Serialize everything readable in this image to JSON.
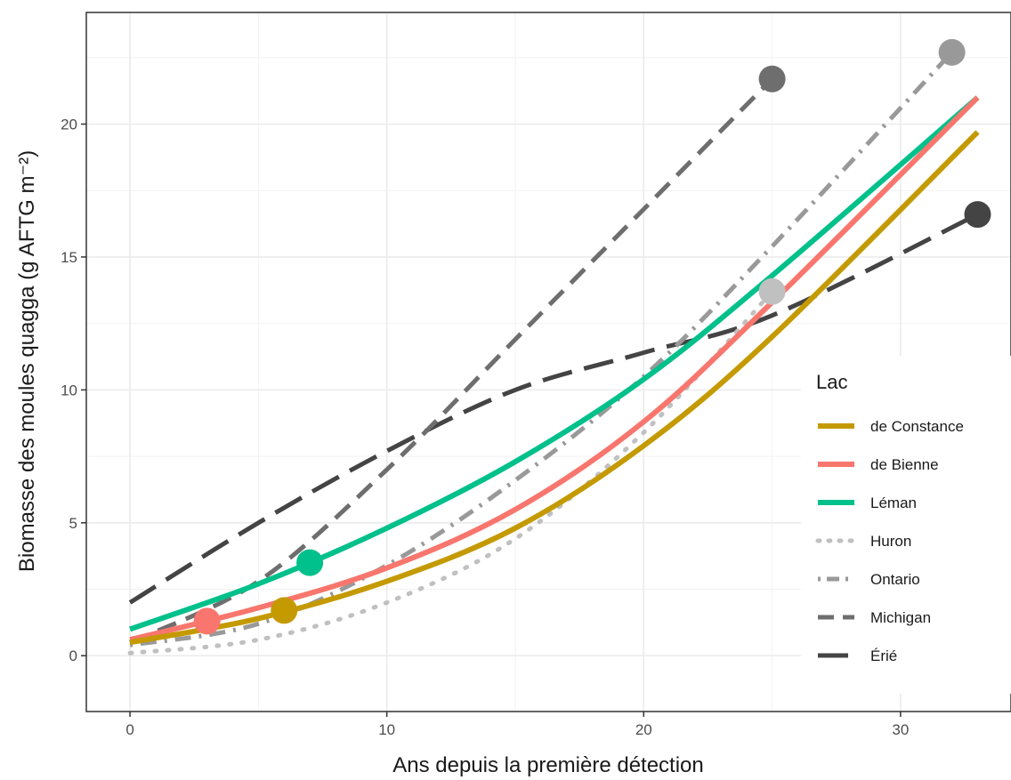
{
  "chart_data": {
    "type": "line",
    "xlabel": "Ans depuis la première détection",
    "ylabel": "Biomasse des moules quagga (g AFTG m⁻²)",
    "xlim": [
      -1.7,
      34.3
    ],
    "ylim": [
      -2.1,
      24.2
    ],
    "x_ticks": [
      0,
      10,
      20,
      30
    ],
    "y_ticks": [
      0,
      5,
      10,
      15,
      20
    ],
    "x_tick_labels": [
      "0",
      "10",
      "20",
      "30"
    ],
    "y_tick_labels": [
      "0",
      "5",
      "10",
      "15",
      "20"
    ],
    "grid": true,
    "legend": {
      "title": "Lac",
      "position": "right",
      "labels": [
        "de Constance",
        "de Bienne",
        "Léman",
        "Huron",
        "Ontario",
        "Michigan",
        "Érié"
      ]
    },
    "series": [
      {
        "name": "de Constance",
        "color": "#c49a00",
        "dash": "solid",
        "x": [
          0,
          5,
          10,
          15,
          20,
          25,
          33
        ],
        "y": [
          0.5,
          1.4,
          2.8,
          4.8,
          7.9,
          12.0,
          19.7
        ],
        "point": {
          "x": 6,
          "y": 1.7
        }
      },
      {
        "name": "de Bienne",
        "color": "#f8766d",
        "dash": "solid",
        "x": [
          0,
          5,
          10,
          15,
          20,
          25,
          33
        ],
        "y": [
          0.6,
          1.8,
          3.3,
          5.5,
          8.8,
          13.3,
          21.0
        ],
        "point": {
          "x": 3,
          "y": 1.3
        }
      },
      {
        "name": "Léman",
        "color": "#00c08b",
        "dash": "solid",
        "x": [
          0,
          5,
          10,
          15,
          20,
          25,
          33
        ],
        "y": [
          1.0,
          2.7,
          4.8,
          7.3,
          10.4,
          14.3,
          21.0
        ],
        "point": {
          "x": 7,
          "y": 3.5
        }
      },
      {
        "name": "Huron",
        "color": "#c0c0c0",
        "dash": "dot",
        "x": [
          0,
          5,
          10,
          15,
          20,
          25
        ],
        "y": [
          0.1,
          0.6,
          2.0,
          4.4,
          8.4,
          13.7
        ],
        "point": {
          "x": 25,
          "y": 13.7
        }
      },
      {
        "name": "Ontario",
        "color": "#999999",
        "dash": "dotdash",
        "x": [
          0,
          5,
          10,
          15,
          20,
          25,
          32
        ],
        "y": [
          0.4,
          1.2,
          3.4,
          6.6,
          10.5,
          15.4,
          22.7
        ],
        "point": {
          "x": 32,
          "y": 22.7
        }
      },
      {
        "name": "Michigan",
        "color": "#6e6e6e",
        "dash": "dash",
        "x": [
          0,
          5,
          10,
          15,
          20,
          25
        ],
        "y": [
          0.5,
          2.8,
          7.0,
          11.9,
          16.8,
          21.7
        ],
        "point": {
          "x": 25,
          "y": 21.7
        }
      },
      {
        "name": "Érié",
        "color": "#444444",
        "dash": "longdash",
        "x": [
          0,
          5,
          10,
          15,
          20,
          25,
          33
        ],
        "y": [
          2.0,
          5.0,
          7.7,
          10.0,
          11.4,
          12.8,
          16.6
        ],
        "point": {
          "x": 33,
          "y": 16.6
        }
      }
    ]
  }
}
